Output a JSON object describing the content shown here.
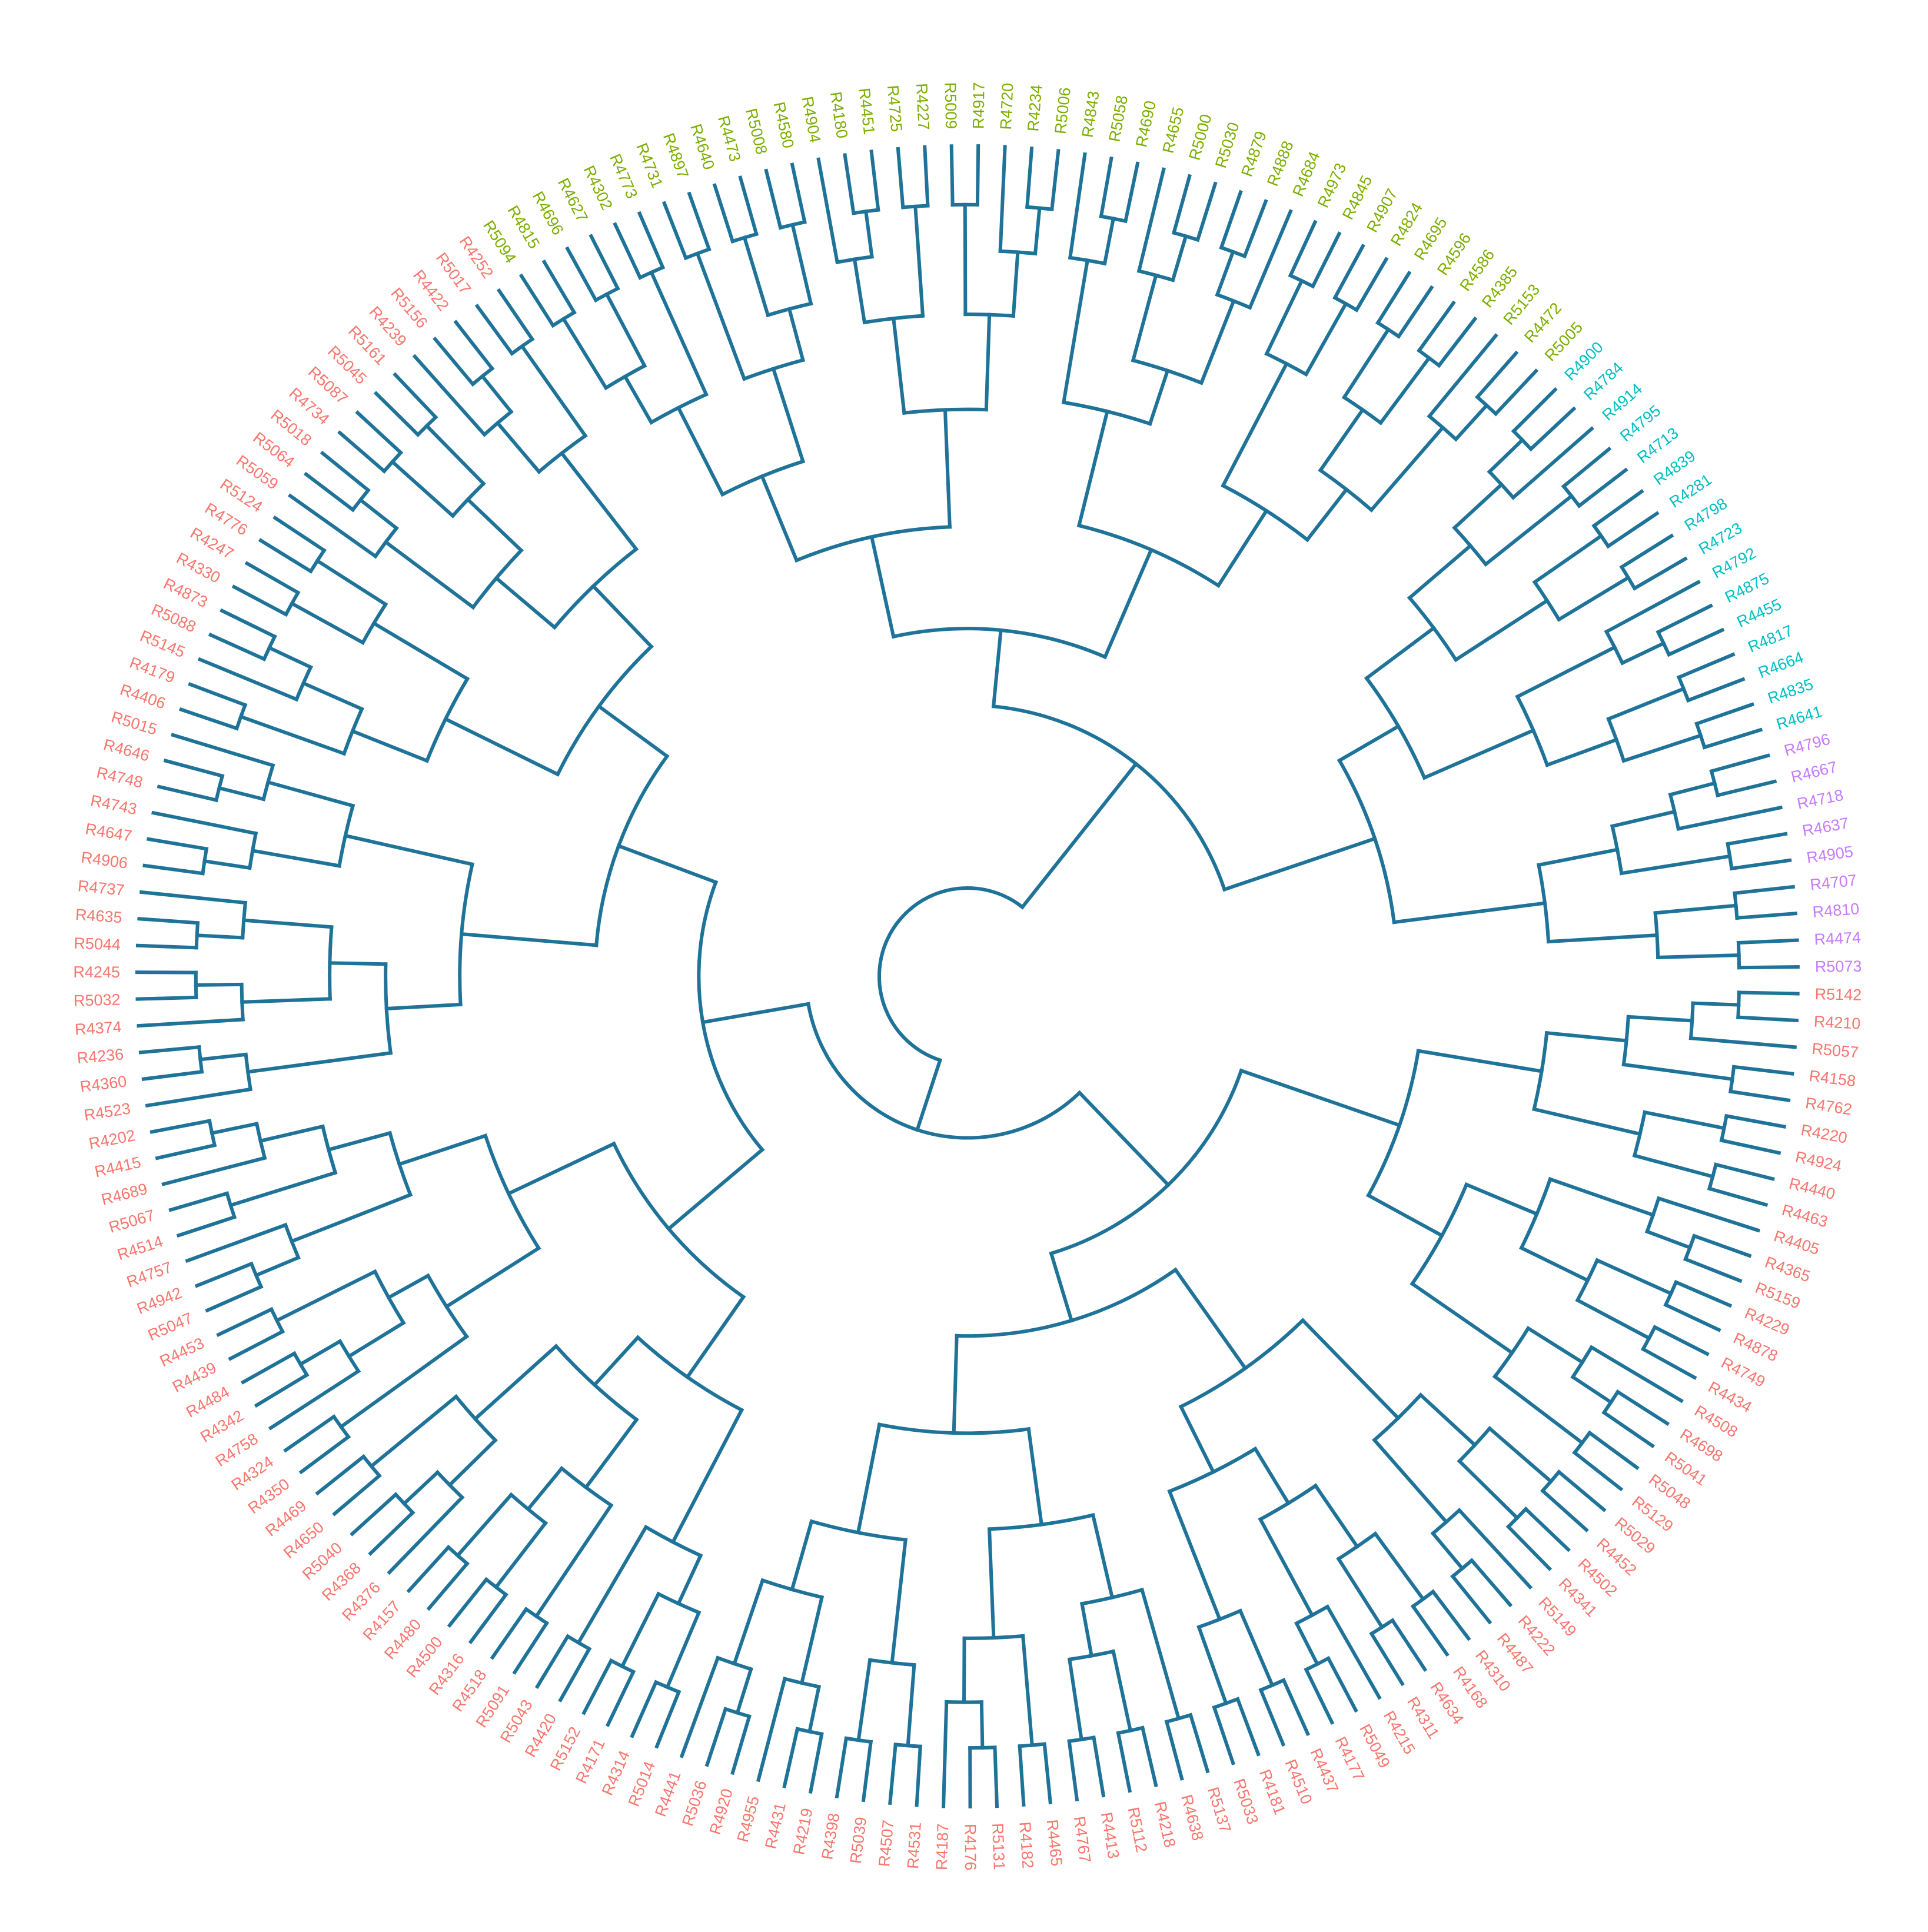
{
  "groups": [
    {
      "color": "#F8766D",
      "leaves": [
        "R5142",
        "R4210",
        "R5057",
        "R4158",
        "R4762",
        "R4220",
        "R4924",
        "R4440",
        "R4463",
        "R4405",
        "R4365",
        "R5159",
        "R4229",
        "R4878",
        "R4749",
        "R4434",
        "R4508",
        "R4698",
        "R5041",
        "R5048",
        "R5129",
        "R5029",
        "R4452",
        "R4502",
        "R4341",
        "R5149",
        "R4222",
        "R4487",
        "R4310",
        "R4168",
        "R4634",
        "R4311",
        "R4215",
        "R5049",
        "R4177",
        "R4437",
        "R4510",
        "R4181",
        "R5033",
        "R5137",
        "R4638",
        "R4218",
        "R5112",
        "R4413",
        "R4767",
        "R4465",
        "R4182",
        "R5131",
        "R4176",
        "R4187",
        "R4531",
        "R4507",
        "R5039",
        "R4398",
        "R4219",
        "R4431",
        "R4955",
        "R4920",
        "R5036",
        "R4441",
        "R5014",
        "R4314",
        "R4171",
        "R5152",
        "R4420",
        "R5043",
        "R5091",
        "R4518",
        "R4316",
        "R4500",
        "R4480",
        "R4157",
        "R4376",
        "R4368",
        "R5040",
        "R4650",
        "R4469",
        "R4350",
        "R4324",
        "R4758",
        "R4342",
        "R4484",
        "R4439",
        "R4453",
        "R5047",
        "R4942",
        "R4757",
        "R4514",
        "R5067",
        "R4689",
        "R4415",
        "R4202",
        "R4523",
        "R4360",
        "R4236",
        "R4374",
        "R5032",
        "R4245",
        "R5044",
        "R4635",
        "R4737",
        "R4906",
        "R4647",
        "R4743",
        "R4748",
        "R4646",
        "R5015",
        "R4406",
        "R4179",
        "R5145",
        "R5088",
        "R4873",
        "R4330",
        "R4247",
        "R4776",
        "R5124",
        "R5059",
        "R5064",
        "R5018",
        "R4734",
        "R5087",
        "R5045",
        "R5161",
        "R4239",
        "R5156",
        "R4422",
        "R5017",
        "R4252"
      ]
    },
    {
      "color": "#7CAE00",
      "leaves": [
        "R5094",
        "R4815",
        "R4696",
        "R4627",
        "R4302",
        "R4773",
        "R4731",
        "R4897",
        "R4640",
        "R4473",
        "R5008",
        "R4580",
        "R4904",
        "R4180",
        "R4451",
        "R4725",
        "R4227",
        "R5009",
        "R4917",
        "R4720",
        "R4234",
        "R5006",
        "R4843",
        "R5058",
        "R4690",
        "R4655",
        "R5000",
        "R5030",
        "R4879",
        "R4888",
        "R4684",
        "R4973",
        "R4845",
        "R4907",
        "R4824",
        "R4695",
        "R4596",
        "R4586",
        "R4385",
        "R5153",
        "R4472",
        "R5005"
      ]
    },
    {
      "color": "#00BFC4",
      "leaves": [
        "R4900",
        "R4784",
        "R4914",
        "R4795",
        "R4713",
        "R4839",
        "R4281",
        "R4798",
        "R4723",
        "R4792",
        "R4875",
        "R4455",
        "R4817",
        "R4664",
        "R4835",
        "R4641"
      ]
    },
    {
      "color": "#C77CFF",
      "leaves": [
        "R4796",
        "R4667",
        "R4718",
        "R4637",
        "R4905",
        "R4707",
        "R4810",
        "R4474",
        "R5073"
      ]
    }
  ]
}
